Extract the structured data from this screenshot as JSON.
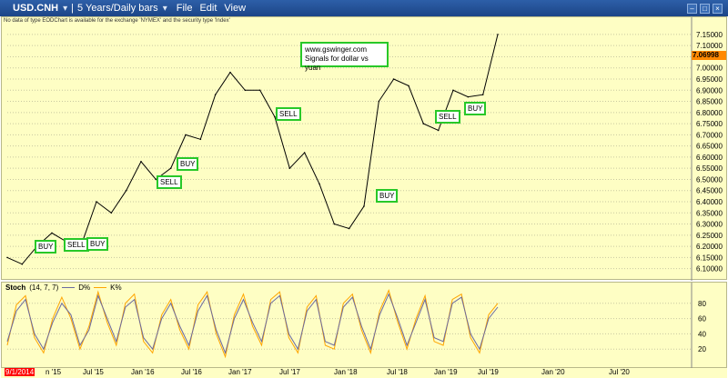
{
  "window": {
    "symbol": "USD.CNH",
    "timeframe": "5 Years/Daily bars",
    "menu": [
      "File",
      "Edit",
      "View"
    ]
  },
  "notice": "No data of type EODChart is available for the exchange 'NYMEX' and the security type 'Index'",
  "watermark": {
    "line1": "www.gswinger.com",
    "line2": "Signals for dollar vs yuan"
  },
  "price_tag": "7.06998",
  "signals": [
    {
      "label": "BUY"
    },
    {
      "label": "SELL"
    },
    {
      "label": "BUY"
    },
    {
      "label": "BUY"
    },
    {
      "label": "SELL"
    },
    {
      "label": "SELL"
    },
    {
      "label": "BUY"
    },
    {
      "label": "SELL"
    },
    {
      "label": "BUY"
    }
  ],
  "stoch_legend": {
    "title": "Stoch",
    "params": "(14, 7, 7)",
    "d_label": "D%",
    "k_label": "K%"
  },
  "x_labels": [
    "9/1/2014",
    "n '15",
    "Jul '15",
    "Jan '16",
    "Jul '16",
    "Jan '17",
    "Jul '17",
    "Jan '18",
    "Jul '18",
    "Jan '19",
    "Jul '19",
    "Jan '20",
    "Jul '20"
  ],
  "colors": {
    "panel_bg": "#fefec4",
    "signal_border": "#28c828",
    "price_tag": "#ff8800",
    "d_line": "#6a6aa0",
    "k_line": "#ffa500"
  },
  "chart_data": {
    "type": "line",
    "title": "USD.CNH",
    "y_ticks": [
      "7.15000",
      "7.10000",
      "7.05000",
      "7.00000",
      "6.95000",
      "6.90000",
      "6.85000",
      "6.80000",
      "6.75000",
      "6.70000",
      "6.65000",
      "6.60000",
      "6.55000",
      "6.50000",
      "6.45000",
      "6.40000",
      "6.35000",
      "6.30000",
      "6.25000",
      "6.20000",
      "6.15000",
      "6.10000"
    ],
    "ylim": [
      6.07,
      7.17
    ],
    "x": [
      "2014-09",
      "2014-11",
      "2015-01",
      "2015-03",
      "2015-05",
      "2015-07",
      "2015-08",
      "2015-10",
      "2015-12",
      "2016-01",
      "2016-03",
      "2016-05",
      "2016-07",
      "2016-09",
      "2016-11",
      "2017-01",
      "2017-03",
      "2017-05",
      "2017-07",
      "2017-09",
      "2017-11",
      "2018-01",
      "2018-03",
      "2018-04",
      "2018-06",
      "2018-08",
      "2018-10",
      "2018-12",
      "2019-02",
      "2019-04",
      "2019-05",
      "2019-06",
      "2019-07",
      "2019-08"
    ],
    "series": [
      {
        "values": [
          6.15,
          6.12,
          6.2,
          6.26,
          6.22,
          6.21,
          6.4,
          6.35,
          6.45,
          6.58,
          6.5,
          6.55,
          6.7,
          6.68,
          6.88,
          6.98,
          6.9,
          6.9,
          6.78,
          6.55,
          6.62,
          6.48,
          6.3,
          6.28,
          6.38,
          6.85,
          6.95,
          6.92,
          6.75,
          6.72,
          6.9,
          6.87,
          6.88,
          7.15
        ]
      }
    ],
    "stoch": {
      "y_ticks": [
        "80",
        "60",
        "40",
        "20"
      ],
      "ylim": [
        0,
        100
      ],
      "d": [
        30,
        70,
        85,
        40,
        20,
        55,
        80,
        65,
        25,
        45,
        90,
        60,
        30,
        75,
        85,
        35,
        20,
        60,
        80,
        50,
        25,
        70,
        90,
        45,
        15,
        60,
        85,
        55,
        30,
        80,
        90,
        40,
        20,
        70,
        85,
        30,
        25,
        75,
        88,
        50,
        20,
        65,
        92,
        60,
        25,
        55,
        85,
        35,
        30,
        80,
        88,
        40,
        20,
        60,
        75
      ],
      "k": [
        25,
        78,
        90,
        35,
        15,
        60,
        88,
        60,
        20,
        50,
        95,
        55,
        25,
        80,
        92,
        30,
        15,
        65,
        85,
        45,
        20,
        78,
        95,
        40,
        10,
        65,
        92,
        50,
        25,
        85,
        95,
        35,
        15,
        75,
        90,
        25,
        20,
        80,
        92,
        45,
        15,
        70,
        97,
        55,
        20,
        60,
        90,
        30,
        25,
        85,
        92,
        35,
        15,
        65,
        80
      ]
    }
  }
}
